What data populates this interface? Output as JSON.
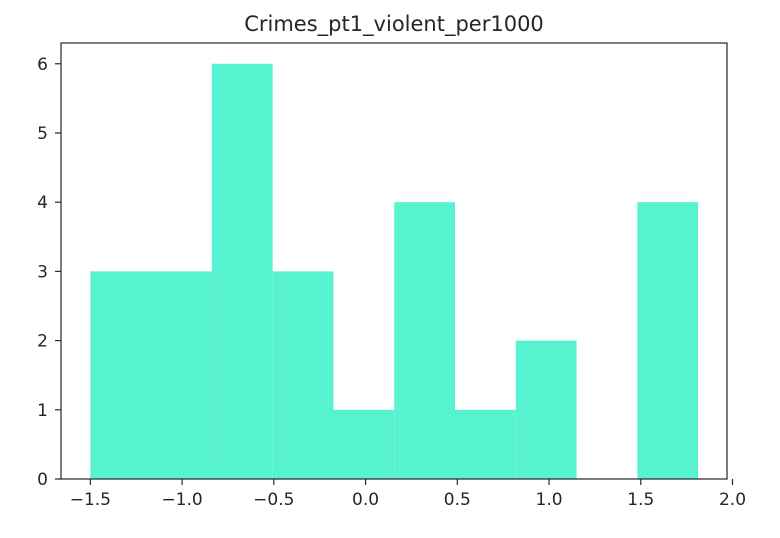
{
  "chart_data": {
    "type": "bar",
    "subtype": "histogram",
    "title": "Crimes_pt1_violent_per1000",
    "xlabel": "",
    "ylabel": "",
    "bin_edges": [
      -1.5,
      -0.8375,
      -0.5063,
      -0.175,
      0.1563,
      0.4875,
      0.8188,
      1.15,
      1.4813,
      1.8125
    ],
    "bins": [
      {
        "start": -1.5,
        "end": -0.8375,
        "count": 3
      },
      {
        "start": -0.8375,
        "end": -0.5063,
        "count": 6
      },
      {
        "start": -0.5063,
        "end": -0.175,
        "count": 3
      },
      {
        "start": -0.175,
        "end": 0.1563,
        "count": 1
      },
      {
        "start": 0.1563,
        "end": 0.4875,
        "count": 4
      },
      {
        "start": 0.4875,
        "end": 0.8188,
        "count": 1
      },
      {
        "start": 0.8188,
        "end": 1.15,
        "count": 2
      },
      {
        "start": 1.15,
        "end": 1.4813,
        "count": 0
      },
      {
        "start": 1.4813,
        "end": 1.8125,
        "count": 4
      }
    ],
    "xlim": [
      -1.66,
      1.97
    ],
    "ylim": [
      0,
      6.3
    ],
    "x_ticks": [
      -1.5,
      -1.0,
      -0.5,
      0.0,
      0.5,
      1.0,
      1.5,
      2.0
    ],
    "x_tick_labels": [
      "−1.5",
      "−1.0",
      "−0.5",
      "0.0",
      "0.5",
      "1.0",
      "1.5",
      "2.0"
    ],
    "y_ticks": [
      0,
      1,
      2,
      3,
      4,
      5,
      6
    ],
    "y_tick_labels": [
      "0",
      "1",
      "2",
      "3",
      "4",
      "5",
      "6"
    ],
    "bar_color": "#57f2d0",
    "grid": false,
    "legend": "none"
  }
}
